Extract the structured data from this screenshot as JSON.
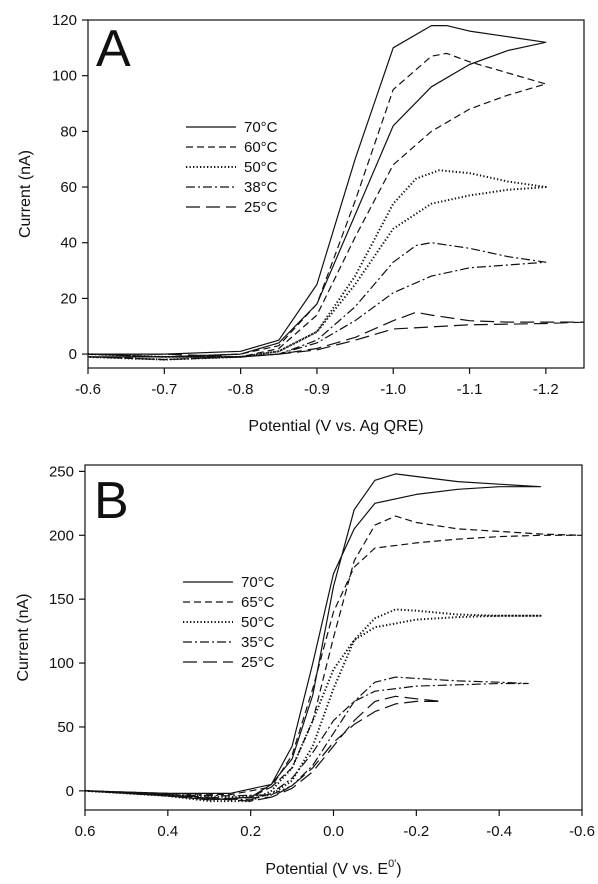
{
  "chart_data": [
    {
      "type": "line",
      "panel_label": "A",
      "xlabel": "Potential (V vs. Ag QRE)",
      "ylabel": "Current (nA)",
      "xlim": [
        -0.6,
        -1.25
      ],
      "ylim": [
        -5,
        120
      ],
      "x_ticks": [
        {
          "value": -0.6,
          "label": "-0.6"
        },
        {
          "value": -0.7,
          "label": "-0.7"
        },
        {
          "value": -0.8,
          "label": "-0.8"
        },
        {
          "value": -0.9,
          "label": "-0.9"
        },
        {
          "value": -1.0,
          "label": "-1.0"
        },
        {
          "value": -1.1,
          "label": "-1.1"
        },
        {
          "value": -1.2,
          "label": "-1.2"
        }
      ],
      "y_ticks": [
        {
          "value": 0,
          "label": "0"
        },
        {
          "value": 20,
          "label": "20"
        },
        {
          "value": 40,
          "label": "40"
        },
        {
          "value": 60,
          "label": "60"
        },
        {
          "value": 80,
          "label": "80"
        },
        {
          "value": 100,
          "label": "100"
        },
        {
          "value": 120,
          "label": "120"
        }
      ],
      "grid": false,
      "legend_position": "center-left",
      "series": [
        {
          "name": "70°C",
          "style": "solid",
          "x": [
            -0.6,
            -0.7,
            -0.8,
            -0.85,
            -0.9,
            -0.95,
            -1.0,
            -1.05,
            -1.07,
            -1.1,
            -1.15,
            -1.2,
            -1.15,
            -1.1,
            -1.05,
            -1.0,
            -0.95,
            -0.9,
            -0.85,
            -0.8,
            -0.7,
            -0.6
          ],
          "y": [
            0,
            0,
            1,
            5,
            25,
            70,
            110,
            118,
            118,
            116,
            114,
            112,
            109,
            104,
            96,
            82,
            50,
            18,
            4,
            0,
            -1,
            -1
          ]
        },
        {
          "name": "60°C",
          "style": "short-dash",
          "x": [
            -0.6,
            -0.7,
            -0.8,
            -0.85,
            -0.9,
            -0.95,
            -1.0,
            -1.05,
            -1.07,
            -1.1,
            -1.15,
            -1.2,
            -1.15,
            -1.1,
            -1.05,
            -1.0,
            -0.95,
            -0.9,
            -0.85,
            -0.8,
            -0.7,
            -0.6
          ],
          "y": [
            0,
            -1,
            0,
            3,
            18,
            55,
            95,
            107,
            108,
            105,
            101,
            97,
            93,
            88,
            80,
            68,
            42,
            14,
            2,
            -1,
            -2,
            -1
          ]
        },
        {
          "name": "50°C",
          "style": "dotted",
          "x": [
            -0.6,
            -0.7,
            -0.8,
            -0.85,
            -0.9,
            -0.95,
            -1.0,
            -1.03,
            -1.06,
            -1.1,
            -1.15,
            -1.2,
            -1.15,
            -1.1,
            -1.05,
            -1.0,
            -0.95,
            -0.9,
            -0.85,
            -0.8,
            -0.7,
            -0.6
          ],
          "y": [
            0,
            -1,
            -1,
            1,
            8,
            28,
            54,
            63,
            66,
            65,
            62,
            60,
            59,
            57,
            54,
            45,
            25,
            8,
            1,
            -1,
            -2,
            -1
          ]
        },
        {
          "name": "38°C",
          "style": "dash-dot",
          "x": [
            -0.6,
            -0.7,
            -0.8,
            -0.85,
            -0.9,
            -0.95,
            -1.0,
            -1.03,
            -1.05,
            -1.1,
            -1.15,
            -1.2,
            -1.15,
            -1.1,
            -1.05,
            -1.0,
            -0.95,
            -0.9,
            -0.85,
            -0.8,
            -0.7,
            -0.6
          ],
          "y": [
            0,
            -1,
            -1,
            0,
            5,
            17,
            33,
            39,
            40,
            38,
            35,
            33,
            32,
            31,
            28,
            22,
            12,
            4,
            0,
            -1,
            -2,
            -1
          ]
        },
        {
          "name": "25°C",
          "style": "long-dash",
          "x": [
            -0.6,
            -0.7,
            -0.8,
            -0.85,
            -0.9,
            -0.95,
            -1.0,
            -1.03,
            -1.05,
            -1.1,
            -1.15,
            -1.2,
            -1.25,
            -1.2,
            -1.1,
            -1.0,
            -0.95,
            -0.9,
            -0.85,
            -0.8,
            -0.7,
            -0.6
          ],
          "y": [
            0,
            0,
            -1,
            0,
            2,
            6,
            12,
            15,
            14,
            12,
            11.5,
            11.5,
            11.5,
            11,
            10.5,
            9,
            5,
            1.5,
            0,
            -1,
            -1,
            0
          ]
        }
      ]
    },
    {
      "type": "line",
      "panel_label": "B",
      "xlabel": "Potential (V vs. E",
      "xlabel_sup": "0'",
      "xlabel_suffix": ")",
      "ylabel": "Current (nA)",
      "xlim": [
        0.6,
        -0.6
      ],
      "ylim": [
        -15,
        255
      ],
      "x_ticks": [
        {
          "value": 0.6,
          "label": "0.6"
        },
        {
          "value": 0.4,
          "label": "0.4"
        },
        {
          "value": 0.2,
          "label": "0.2"
        },
        {
          "value": 0.0,
          "label": "0.0"
        },
        {
          "value": -0.2,
          "label": "-0.2"
        },
        {
          "value": -0.4,
          "label": "-0.4"
        },
        {
          "value": -0.6,
          "label": "-0.6"
        }
      ],
      "y_ticks": [
        {
          "value": 0,
          "label": "0"
        },
        {
          "value": 50,
          "label": "50"
        },
        {
          "value": 100,
          "label": "100"
        },
        {
          "value": 150,
          "label": "150"
        },
        {
          "value": 200,
          "label": "200"
        },
        {
          "value": 250,
          "label": "250"
        }
      ],
      "grid": false,
      "legend_position": "center-left",
      "series": [
        {
          "name": "70°C",
          "style": "solid",
          "x": [
            0.6,
            0.4,
            0.25,
            0.15,
            0.1,
            0.05,
            0.0,
            -0.05,
            -0.1,
            -0.15,
            -0.2,
            -0.3,
            -0.4,
            -0.5,
            -0.4,
            -0.3,
            -0.2,
            -0.1,
            -0.05,
            0.0,
            0.05,
            0.1,
            0.15,
            0.2,
            0.3,
            0.4,
            0.6
          ],
          "y": [
            0,
            -2,
            -2,
            5,
            25,
            75,
            160,
            220,
            243,
            248,
            246,
            242,
            240,
            238,
            238,
            236,
            232,
            225,
            205,
            170,
            100,
            35,
            5,
            -5,
            -7,
            -4,
            0
          ]
        },
        {
          "name": "65°C",
          "style": "short-dash",
          "x": [
            0.6,
            0.4,
            0.25,
            0.15,
            0.1,
            0.05,
            0.0,
            -0.05,
            -0.1,
            -0.15,
            -0.2,
            -0.3,
            -0.4,
            -0.5,
            -0.6,
            -0.5,
            -0.4,
            -0.3,
            -0.2,
            -0.1,
            -0.05,
            0.0,
            0.05,
            0.1,
            0.15,
            0.2,
            0.3,
            0.4,
            0.6
          ],
          "y": [
            0,
            -2,
            -3,
            3,
            18,
            55,
            120,
            180,
            208,
            215,
            210,
            205,
            203,
            201,
            200,
            200,
            199,
            197,
            194,
            190,
            175,
            140,
            80,
            28,
            3,
            -5,
            -7,
            -4,
            0
          ]
        },
        {
          "name": "50°C",
          "style": "dotted",
          "x": [
            0.6,
            0.4,
            0.25,
            0.15,
            0.1,
            0.05,
            0.0,
            -0.05,
            -0.1,
            -0.15,
            -0.2,
            -0.3,
            -0.4,
            -0.5,
            -0.4,
            -0.3,
            -0.2,
            -0.1,
            -0.05,
            0.0,
            0.05,
            0.1,
            0.15,
            0.2,
            0.3,
            0.4,
            0.6
          ],
          "y": [
            0,
            -3,
            -5,
            -3,
            8,
            35,
            80,
            118,
            135,
            142,
            141,
            138,
            137,
            137,
            137,
            136,
            134,
            128,
            118,
            95,
            55,
            18,
            0,
            -8,
            -8,
            -4,
            0
          ]
        },
        {
          "name": "35°C",
          "style": "dash-dot",
          "x": [
            0.6,
            0.4,
            0.25,
            0.15,
            0.1,
            0.05,
            0.0,
            -0.05,
            -0.1,
            -0.15,
            -0.2,
            -0.3,
            -0.4,
            -0.47,
            -0.4,
            -0.3,
            -0.2,
            -0.1,
            -0.05,
            0.0,
            0.05,
            0.1,
            0.15,
            0.2,
            0.3,
            0.4,
            0.6
          ],
          "y": [
            0,
            -3,
            -4,
            -3,
            4,
            20,
            45,
            70,
            85,
            89,
            88,
            86,
            85,
            84,
            84,
            83,
            82,
            78,
            70,
            55,
            30,
            10,
            -2,
            -7,
            -6,
            -3,
            0
          ]
        },
        {
          "name": "25°C",
          "style": "long-dash",
          "x": [
            0.6,
            0.4,
            0.25,
            0.15,
            0.1,
            0.05,
            0.0,
            -0.05,
            -0.1,
            -0.15,
            -0.2,
            -0.26,
            -0.2,
            -0.15,
            -0.1,
            -0.05,
            0.0,
            0.05,
            0.1,
            0.15,
            0.2,
            0.3,
            0.4,
            0.6
          ],
          "y": [
            0,
            -3,
            -6,
            -5,
            2,
            15,
            35,
            55,
            70,
            74,
            72,
            70,
            70,
            68,
            62,
            52,
            38,
            18,
            4,
            -5,
            -8,
            -6,
            -3,
            0
          ]
        }
      ]
    }
  ]
}
